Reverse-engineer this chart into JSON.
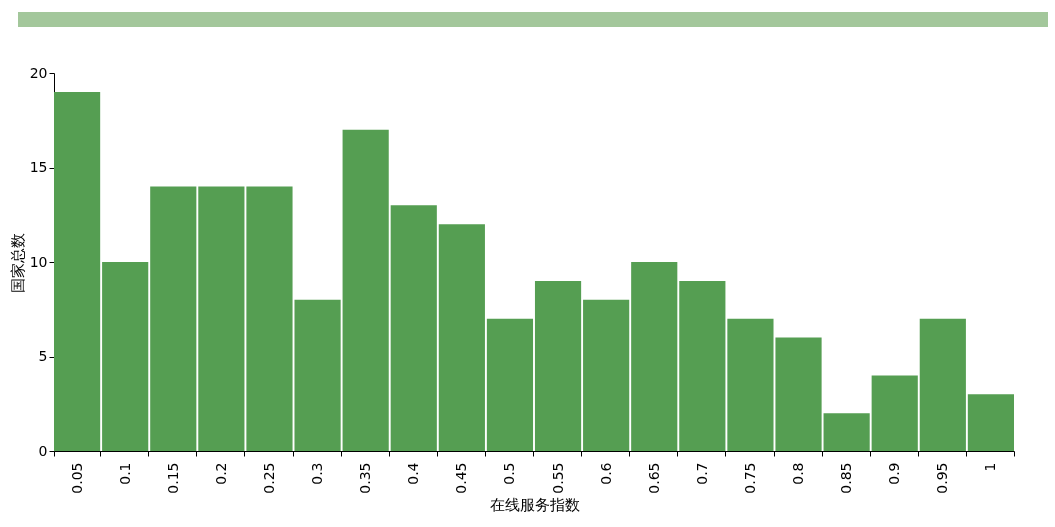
{
  "chart_data": {
    "type": "bar",
    "xlabel": "在线服务指数",
    "ylabel": "国家总数",
    "categories": [
      "0.05",
      "0.1",
      "0.15",
      "0.2",
      "0.25",
      "0.3",
      "0.35",
      "0.4",
      "0.45",
      "0.5",
      "0.55",
      "0.6",
      "0.65",
      "0.7",
      "0.75",
      "0.8",
      "0.85",
      "0.9",
      "0.95",
      "1"
    ],
    "values": [
      19,
      10,
      14,
      14,
      14,
      8,
      17,
      13,
      12,
      7,
      9,
      8,
      10,
      9,
      7,
      6,
      2,
      4,
      7,
      3
    ],
    "color": "#559e52",
    "ylim": [
      0,
      20
    ],
    "yticks": [
      0,
      5,
      10,
      15,
      20
    ],
    "grid": false
  }
}
